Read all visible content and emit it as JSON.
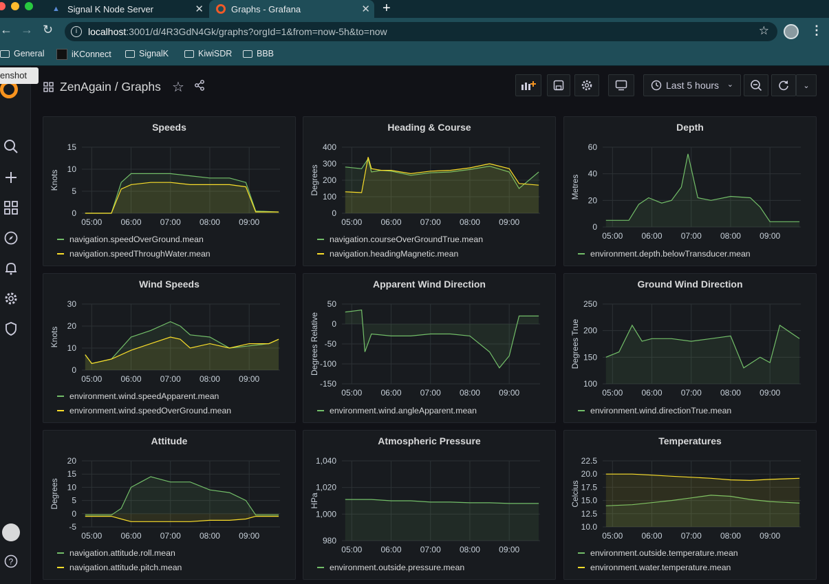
{
  "browser": {
    "tabs": [
      {
        "label": "Signal K Node Server",
        "icon": "signalk-icon"
      },
      {
        "label": "Graphs - Grafana",
        "icon": "grafana-icon"
      }
    ],
    "new_tab_icon": "plus-icon",
    "url_host": "localhost",
    "url_path": ":3001/d/4R3GdN4Gk/graphs?orgId=1&from=now-5h&to=now",
    "bookmarks": [
      {
        "label": "General",
        "icon": "folder-icon"
      },
      {
        "label": "iKConnect",
        "icon": "ikconnect-icon"
      },
      {
        "label": "SignalK",
        "icon": "folder-icon"
      },
      {
        "label": "KiwiSDR",
        "icon": "folder-icon"
      },
      {
        "label": "BBB",
        "icon": "folder-icon"
      }
    ],
    "tooltip": "enshot"
  },
  "grafana": {
    "breadcrumb": "ZenAgain / Graphs",
    "time_range": "Last 5 hours",
    "sidebar_icons": [
      "search-icon",
      "plus-icon",
      "dashboards-icon",
      "explore-icon",
      "alert-icon",
      "gear-icon",
      "shield-icon",
      "avatar",
      "help-icon"
    ]
  },
  "colors": {
    "green": "#73bf69",
    "yellow": "#fade2a",
    "panel_bg": "#181b1f",
    "page_bg": "#111217"
  },
  "panels": [
    {
      "key": "speeds",
      "title": "Speeds",
      "ylabel": "Knots",
      "yticks": [
        "15",
        "10",
        "5",
        "0"
      ],
      "xticks": [
        "05:00",
        "06:00",
        "07:00",
        "08:00",
        "09:00"
      ],
      "legend": [
        "navigation.speedOverGround.mean",
        "navigation.speedThroughWater.mean"
      ]
    },
    {
      "key": "heading",
      "title": "Heading & Course",
      "ylabel": "Degrees",
      "yticks": [
        "400",
        "300",
        "200",
        "100",
        "0"
      ],
      "xticks": [
        "05:00",
        "06:00",
        "07:00",
        "08:00",
        "09:00"
      ],
      "legend": [
        "navigation.courseOverGroundTrue.mean",
        "navigation.headingMagnetic.mean"
      ]
    },
    {
      "key": "depth",
      "title": "Depth",
      "ylabel": "Metres",
      "yticks": [
        "60",
        "40",
        "20",
        "0"
      ],
      "xticks": [
        "05:00",
        "06:00",
        "07:00",
        "08:00",
        "09:00"
      ],
      "legend": [
        "environment.depth.belowTransducer.mean"
      ]
    },
    {
      "key": "wind",
      "title": "Wind Speeds",
      "ylabel": "Knots",
      "yticks": [
        "30",
        "20",
        "10",
        "0"
      ],
      "xticks": [
        "05:00",
        "06:00",
        "07:00",
        "08:00",
        "09:00"
      ],
      "legend": [
        "environment.wind.speedApparent.mean",
        "environment.wind.speedOverGround.mean"
      ]
    },
    {
      "key": "awd",
      "title": "Apparent Wind Direction",
      "ylabel": "Degrees Relative",
      "yticks": [
        "50",
        "0",
        "-50",
        "-100",
        "-150"
      ],
      "xticks": [
        "05:00",
        "06:00",
        "07:00",
        "08:00",
        "09:00"
      ],
      "legend": [
        "environment.wind.angleApparent.mean"
      ]
    },
    {
      "key": "gwd",
      "title": "Ground Wind Direction",
      "ylabel": "Degrees True",
      "yticks": [
        "250",
        "200",
        "150",
        "100"
      ],
      "xticks": [
        "05:00",
        "06:00",
        "07:00",
        "08:00",
        "09:00"
      ],
      "legend": [
        "environment.wind.directionTrue.mean"
      ]
    },
    {
      "key": "attitude",
      "title": "Attitude",
      "ylabel": "Degrees",
      "yticks": [
        "20",
        "15",
        "10",
        "5",
        "0",
        "-5"
      ],
      "xticks": [
        "05:00",
        "06:00",
        "07:00",
        "08:00",
        "09:00"
      ],
      "legend": [
        "navigation.attitude.roll.mean",
        "navigation.attitude.pitch.mean"
      ]
    },
    {
      "key": "pressure",
      "title": "Atmospheric Pressure",
      "ylabel": "HPa",
      "yticks": [
        "1,040",
        "1,020",
        "1,000",
        "980"
      ],
      "xticks": [
        "05:00",
        "06:00",
        "07:00",
        "08:00",
        "09:00"
      ],
      "legend": [
        "environment.outside.pressure.mean"
      ]
    },
    {
      "key": "temps",
      "title": "Temperatures",
      "ylabel": "Celcius",
      "yticks": [
        "22.5",
        "20.0",
        "17.5",
        "15.0",
        "12.5",
        "10.0"
      ],
      "xticks": [
        "05:00",
        "06:00",
        "07:00",
        "08:00",
        "09:00"
      ],
      "legend": [
        "environment.outside.temperature.mean",
        "environment.water.temperature.mean"
      ]
    }
  ],
  "chart_data": [
    {
      "type": "line",
      "title": "Speeds",
      "ylabel": "Knots",
      "ylim": [
        0,
        15
      ],
      "x": [
        "04:50",
        "05:30",
        "05:45",
        "06:00",
        "06:30",
        "07:00",
        "07:30",
        "08:00",
        "08:30",
        "08:55",
        "09:10",
        "09:45"
      ],
      "series": [
        {
          "name": "navigation.speedOverGround.mean",
          "values": [
            0,
            0,
            7,
            9,
            9,
            9,
            8.5,
            8,
            8,
            7,
            0.5,
            0.3
          ]
        },
        {
          "name": "navigation.speedThroughWater.mean",
          "values": [
            0,
            0,
            5.5,
            6.5,
            7,
            7,
            6.5,
            6.5,
            6.5,
            6,
            0.3,
            0.3
          ]
        }
      ]
    },
    {
      "type": "line",
      "title": "Heading & Course",
      "ylabel": "Degrees",
      "ylim": [
        0,
        400
      ],
      "x": [
        "04:50",
        "05:15",
        "05:25",
        "05:30",
        "05:45",
        "06:00",
        "06:30",
        "07:00",
        "07:30",
        "08:00",
        "08:30",
        "09:00",
        "09:15",
        "09:45"
      ],
      "series": [
        {
          "name": "navigation.courseOverGroundTrue.mean",
          "values": [
            280,
            270,
            330,
            250,
            260,
            255,
            230,
            245,
            250,
            265,
            285,
            250,
            150,
            250
          ]
        },
        {
          "name": "navigation.headingMagnetic.mean",
          "values": [
            130,
            125,
            340,
            270,
            260,
            260,
            240,
            255,
            260,
            275,
            300,
            270,
            180,
            170
          ]
        }
      ]
    },
    {
      "type": "line",
      "title": "Depth",
      "ylabel": "Metres",
      "ylim": [
        0,
        60
      ],
      "x": [
        "04:50",
        "05:25",
        "05:40",
        "05:55",
        "06:15",
        "06:30",
        "06:45",
        "06:55",
        "07:10",
        "07:30",
        "08:00",
        "08:30",
        "08:45",
        "09:00",
        "09:45"
      ],
      "series": [
        {
          "name": "environment.depth.belowTransducer.mean",
          "values": [
            5,
            5,
            17,
            22,
            18,
            20,
            30,
            55,
            22,
            20,
            23,
            22,
            15,
            4,
            4
          ]
        }
      ]
    },
    {
      "type": "line",
      "title": "Wind Speeds",
      "ylabel": "Knots",
      "ylim": [
        0,
        30
      ],
      "x": [
        "04:50",
        "05:00",
        "05:30",
        "06:00",
        "06:30",
        "07:00",
        "07:15",
        "07:30",
        "08:00",
        "08:30",
        "09:00",
        "09:30",
        "09:45"
      ],
      "series": [
        {
          "name": "environment.wind.speedApparent.mean",
          "values": [
            7,
            3,
            5,
            15,
            18,
            22,
            20,
            16,
            15,
            10,
            11,
            12,
            14
          ]
        },
        {
          "name": "environment.wind.speedOverGround.mean",
          "values": [
            7,
            3,
            5,
            9,
            12,
            15,
            14,
            10,
            12,
            10,
            12,
            12,
            14
          ]
        }
      ]
    },
    {
      "type": "line",
      "title": "Apparent Wind Direction",
      "ylabel": "Degrees Relative",
      "ylim": [
        -150,
        50
      ],
      "x": [
        "04:50",
        "05:15",
        "05:20",
        "05:30",
        "06:00",
        "06:30",
        "07:00",
        "07:30",
        "08:00",
        "08:30",
        "08:45",
        "09:00",
        "09:15",
        "09:45"
      ],
      "series": [
        {
          "name": "environment.wind.angleApparent.mean",
          "values": [
            30,
            35,
            -70,
            -25,
            -30,
            -30,
            -25,
            -25,
            -30,
            -70,
            -110,
            -80,
            20,
            20
          ]
        }
      ]
    },
    {
      "type": "line",
      "title": "Ground Wind Direction",
      "ylabel": "Degrees True",
      "ylim": [
        100,
        250
      ],
      "x": [
        "04:50",
        "05:10",
        "05:30",
        "05:45",
        "06:00",
        "06:30",
        "07:00",
        "07:30",
        "08:00",
        "08:20",
        "08:45",
        "09:00",
        "09:15",
        "09:45"
      ],
      "series": [
        {
          "name": "environment.wind.directionTrue.mean",
          "values": [
            150,
            160,
            210,
            180,
            185,
            185,
            180,
            185,
            190,
            130,
            150,
            140,
            210,
            185
          ]
        }
      ]
    },
    {
      "type": "line",
      "title": "Attitude",
      "ylabel": "Degrees",
      "ylim": [
        -5,
        20
      ],
      "x": [
        "04:50",
        "05:30",
        "05:45",
        "06:00",
        "06:15",
        "06:30",
        "07:00",
        "07:30",
        "08:00",
        "08:30",
        "08:55",
        "09:10",
        "09:45"
      ],
      "series": [
        {
          "name": "navigation.attitude.roll.mean",
          "values": [
            -0.5,
            -0.5,
            2,
            10,
            12,
            14,
            12,
            12,
            9,
            8,
            5,
            -0.5,
            -0.5
          ]
        },
        {
          "name": "navigation.attitude.pitch.mean",
          "values": [
            -1,
            -1,
            -2,
            -3,
            -3,
            -3,
            -3,
            -3,
            -2.5,
            -2.5,
            -2,
            -1,
            -1
          ]
        }
      ]
    },
    {
      "type": "line",
      "title": "Atmospheric Pressure",
      "ylabel": "HPa",
      "ylim": [
        980,
        1040
      ],
      "x": [
        "04:50",
        "05:30",
        "06:00",
        "06:30",
        "07:00",
        "07:30",
        "08:00",
        "08:30",
        "09:00",
        "09:45"
      ],
      "series": [
        {
          "name": "environment.outside.pressure.mean",
          "values": [
            1011,
            1011,
            1010,
            1010,
            1009,
            1009,
            1008.5,
            1008.5,
            1008,
            1008
          ]
        }
      ]
    },
    {
      "type": "line",
      "title": "Temperatures",
      "ylabel": "Celcius",
      "ylim": [
        10,
        22.5
      ],
      "x": [
        "04:50",
        "05:30",
        "06:00",
        "06:30",
        "07:00",
        "07:30",
        "08:00",
        "08:30",
        "09:00",
        "09:45"
      ],
      "series": [
        {
          "name": "environment.outside.temperature.mean",
          "values": [
            14,
            14.2,
            14.6,
            15,
            15.5,
            16,
            15.8,
            15.2,
            14.8,
            14.5
          ]
        },
        {
          "name": "environment.water.temperature.mean",
          "values": [
            20,
            20,
            19.8,
            19.6,
            19.4,
            19.2,
            18.9,
            18.8,
            19,
            19.2
          ]
        }
      ]
    }
  ]
}
